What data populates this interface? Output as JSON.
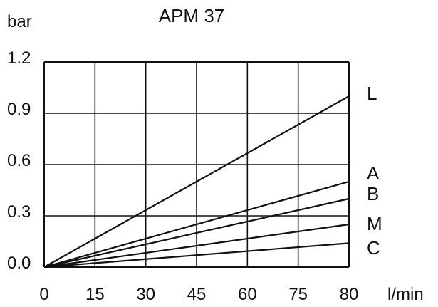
{
  "chart_data": {
    "type": "line",
    "title": "APM 37",
    "xlabel": "l/min",
    "ylabel": "bar",
    "x_ticks": [
      "0",
      "15",
      "30",
      "45",
      "60",
      "75",
      "80"
    ],
    "y_ticks": [
      "0.0",
      "0.3",
      "0.6",
      "0.9",
      "1.2"
    ],
    "grid": true,
    "series": [
      {
        "name": "L",
        "x": [
          0,
          80
        ],
        "y": [
          0.0,
          1.0
        ]
      },
      {
        "name": "A",
        "x": [
          0,
          80
        ],
        "y": [
          0.0,
          0.5
        ]
      },
      {
        "name": "B",
        "x": [
          0,
          80
        ],
        "y": [
          0.0,
          0.4
        ]
      },
      {
        "name": "M",
        "x": [
          0,
          80
        ],
        "y": [
          0.0,
          0.25
        ]
      },
      {
        "name": "C",
        "x": [
          0,
          80
        ],
        "y": [
          0.0,
          0.14
        ]
      }
    ]
  }
}
